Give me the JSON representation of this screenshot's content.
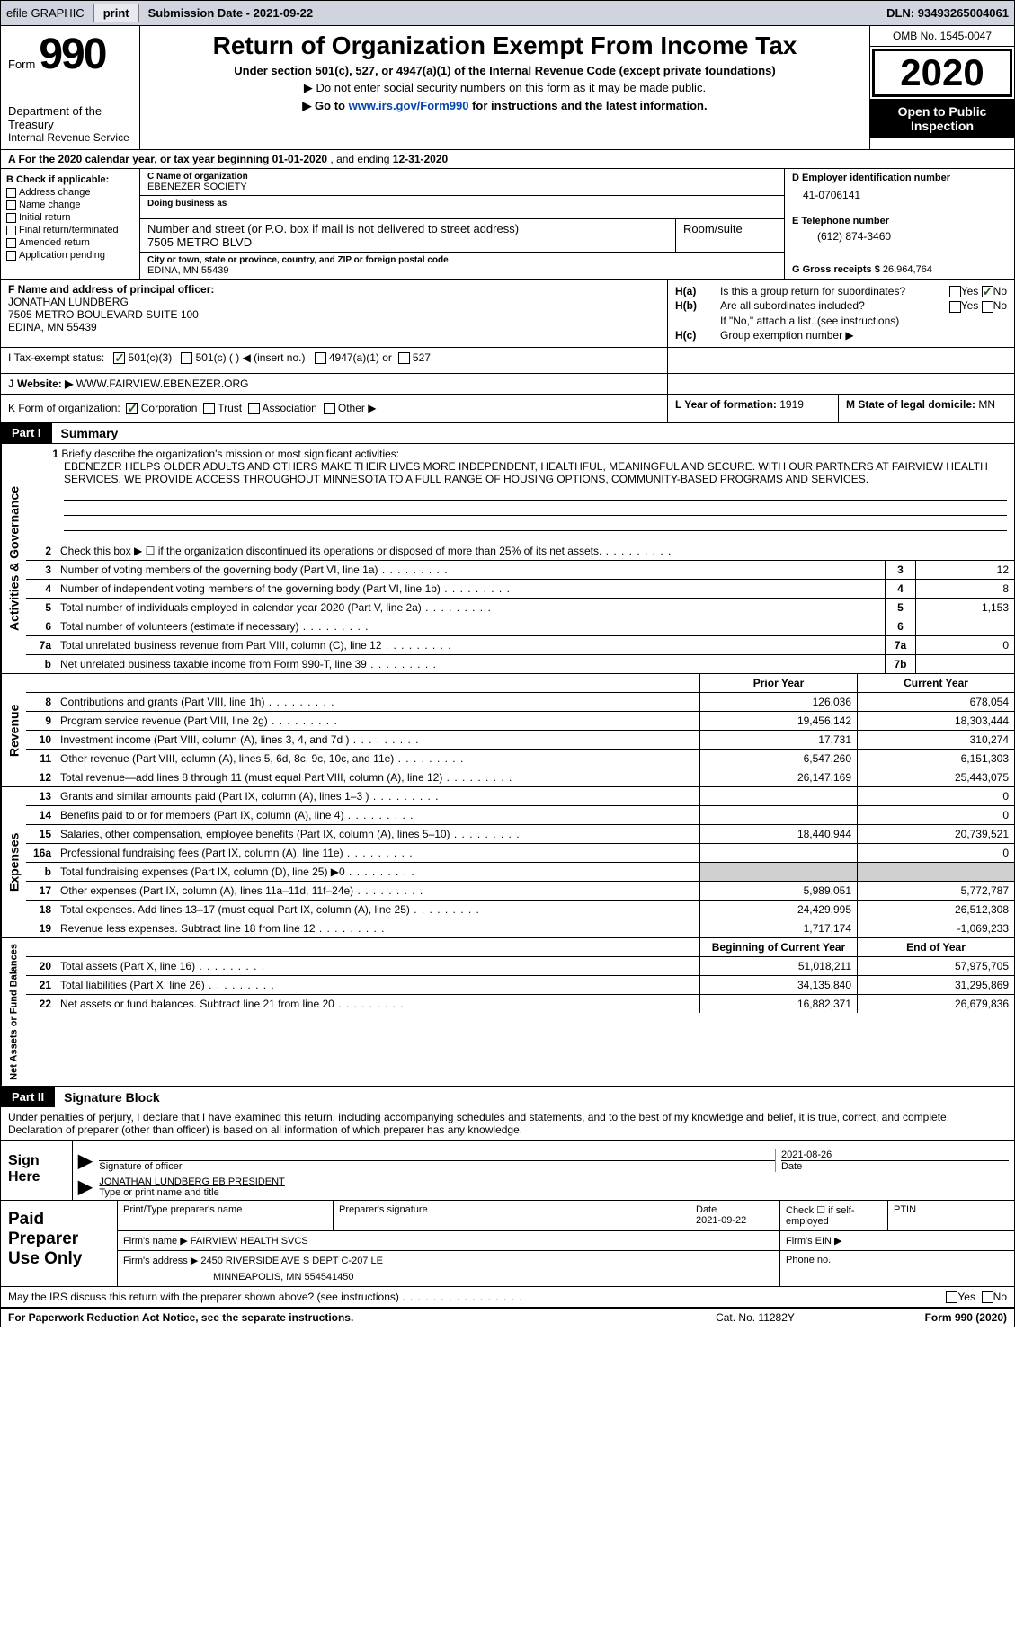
{
  "topbar": {
    "efile": "efile GRAPHIC",
    "print": "print",
    "subdate_label": "Submission Date - ",
    "subdate": "2021-09-22",
    "dln_label": "DLN: ",
    "dln": "93493265004061"
  },
  "header": {
    "form_word": "Form",
    "form_num": "990",
    "dept1": "Department of the Treasury",
    "dept2": "Internal Revenue Service",
    "title": "Return of Organization Exempt From Income Tax",
    "sub": "Under section 501(c), 527, or 4947(a)(1) of the Internal Revenue Code (except private foundations)",
    "note1": "▶ Do not enter social security numbers on this form as it may be made public.",
    "note2_pre": "▶ Go to ",
    "note2_link": "www.irs.gov/Form990",
    "note2_post": " for instructions and the latest information.",
    "omb": "OMB No. 1545-0047",
    "year": "2020",
    "inspect": "Open to Public Inspection"
  },
  "rowA": {
    "text_pre": "A For the 2020 calendar year, or tax year beginning ",
    "begin": "01-01-2020",
    "mid": " , and ending ",
    "end": "12-31-2020"
  },
  "colB": {
    "label": "B Check if applicable:",
    "c1": "Address change",
    "c2": "Name change",
    "c3": "Initial return",
    "c4": "Final return/terminated",
    "c5": "Amended return",
    "c6": "Application pending"
  },
  "colC": {
    "name_lbl": "C Name of organization",
    "name": "EBENEZER SOCIETY",
    "dba_lbl": "Doing business as",
    "dba": "",
    "street_lbl": "Number and street (or P.O. box if mail is not delivered to street address)",
    "street": "7505 METRO BLVD",
    "room_lbl": "Room/suite",
    "city_lbl": "City or town, state or province, country, and ZIP or foreign postal code",
    "city": "EDINA, MN  55439"
  },
  "colD": {
    "ein_lbl": "D Employer identification number",
    "ein": "41-0706141",
    "tel_lbl": "E Telephone number",
    "tel": "(612) 874-3460",
    "gr_lbl": "G Gross receipts $ ",
    "gr": "26,964,764"
  },
  "rowF": {
    "lbl": "F Name and address of principal officer:",
    "name": "JONATHAN LUNDBERG",
    "addr1": "7505 METRO BOULEVARD SUITE 100",
    "addr2": "EDINA, MN  55439"
  },
  "rowH": {
    "a_lbl": "H(a)",
    "a_txt": "Is this a group return for subordinates?",
    "b_lbl": "H(b)",
    "b_txt": "Are all subordinates included?",
    "b_note": "If \"No,\" attach a list. (see instructions)",
    "c_lbl": "H(c)",
    "c_txt": "Group exemption number ▶",
    "yes": "Yes",
    "no": "No"
  },
  "rowI": {
    "lbl": "I   Tax-exempt status:",
    "o1": "501(c)(3)",
    "o2": "501(c) (   ) ◀ (insert no.)",
    "o3": "4947(a)(1) or",
    "o4": "527"
  },
  "rowJ": {
    "lbl": "J   Website: ▶",
    "val": "WWW.FAIRVIEW.EBENEZER.ORG"
  },
  "rowK": {
    "lbl": "K Form of organization:",
    "o1": "Corporation",
    "o2": "Trust",
    "o3": "Association",
    "o4": "Other ▶",
    "l_lbl": "L Year of formation: ",
    "l_val": "1919",
    "m_lbl": "M State of legal domicile: ",
    "m_val": "MN"
  },
  "part1": {
    "tag": "Part I",
    "title": "Summary"
  },
  "mission": {
    "num": "1",
    "lbl": "Briefly describe the organization's mission or most significant activities:",
    "text": "EBENEZER HELPS OLDER ADULTS AND OTHERS MAKE THEIR LIVES MORE INDEPENDENT, HEALTHFUL, MEANINGFUL AND SECURE. WITH OUR PARTNERS AT FAIRVIEW HEALTH SERVICES, WE PROVIDE ACCESS THROUGHOUT MINNESOTA TO A FULL RANGE OF HOUSING OPTIONS, COMMUNITY-BASED PROGRAMS AND SERVICES."
  },
  "gov_lines": [
    {
      "n": "2",
      "t": "Check this box ▶ ☐  if the organization discontinued its operations or disposed of more than 25% of its net assets.",
      "bn": "",
      "bv": ""
    },
    {
      "n": "3",
      "t": "Number of voting members of the governing body (Part VI, line 1a)",
      "bn": "3",
      "bv": "12"
    },
    {
      "n": "4",
      "t": "Number of independent voting members of the governing body (Part VI, line 1b)",
      "bn": "4",
      "bv": "8"
    },
    {
      "n": "5",
      "t": "Total number of individuals employed in calendar year 2020 (Part V, line 2a)",
      "bn": "5",
      "bv": "1,153"
    },
    {
      "n": "6",
      "t": "Total number of volunteers (estimate if necessary)",
      "bn": "6",
      "bv": ""
    },
    {
      "n": "7a",
      "t": "Total unrelated business revenue from Part VIII, column (C), line 12",
      "bn": "7a",
      "bv": "0"
    },
    {
      "n": "b",
      "t": "Net unrelated business taxable income from Form 990-T, line 39",
      "bn": "7b",
      "bv": ""
    }
  ],
  "rev_hdr": {
    "py": "Prior Year",
    "cy": "Current Year"
  },
  "rev_lines": [
    {
      "n": "8",
      "t": "Contributions and grants (Part VIII, line 1h)",
      "py": "126,036",
      "cy": "678,054"
    },
    {
      "n": "9",
      "t": "Program service revenue (Part VIII, line 2g)",
      "py": "19,456,142",
      "cy": "18,303,444"
    },
    {
      "n": "10",
      "t": "Investment income (Part VIII, column (A), lines 3, 4, and 7d )",
      "py": "17,731",
      "cy": "310,274"
    },
    {
      "n": "11",
      "t": "Other revenue (Part VIII, column (A), lines 5, 6d, 8c, 9c, 10c, and 11e)",
      "py": "6,547,260",
      "cy": "6,151,303"
    },
    {
      "n": "12",
      "t": "Total revenue—add lines 8 through 11 (must equal Part VIII, column (A), line 12)",
      "py": "26,147,169",
      "cy": "25,443,075"
    }
  ],
  "exp_lines": [
    {
      "n": "13",
      "t": "Grants and similar amounts paid (Part IX, column (A), lines 1–3 )",
      "py": "",
      "cy": "0"
    },
    {
      "n": "14",
      "t": "Benefits paid to or for members (Part IX, column (A), line 4)",
      "py": "",
      "cy": "0"
    },
    {
      "n": "15",
      "t": "Salaries, other compensation, employee benefits (Part IX, column (A), lines 5–10)",
      "py": "18,440,944",
      "cy": "20,739,521"
    },
    {
      "n": "16a",
      "t": "Professional fundraising fees (Part IX, column (A), line 11e)",
      "py": "",
      "cy": "0"
    },
    {
      "n": "b",
      "t": "Total fundraising expenses (Part IX, column (D), line 25) ▶0",
      "py": "shade",
      "cy": "shade"
    },
    {
      "n": "17",
      "t": "Other expenses (Part IX, column (A), lines 11a–11d, 11f–24e)",
      "py": "5,989,051",
      "cy": "5,772,787"
    },
    {
      "n": "18",
      "t": "Total expenses. Add lines 13–17 (must equal Part IX, column (A), line 25)",
      "py": "24,429,995",
      "cy": "26,512,308"
    },
    {
      "n": "19",
      "t": "Revenue less expenses. Subtract line 18 from line 12",
      "py": "1,717,174",
      "cy": "-1,069,233"
    }
  ],
  "na_hdr": {
    "py": "Beginning of Current Year",
    "cy": "End of Year"
  },
  "na_lines": [
    {
      "n": "20",
      "t": "Total assets (Part X, line 16)",
      "py": "51,018,211",
      "cy": "57,975,705"
    },
    {
      "n": "21",
      "t": "Total liabilities (Part X, line 26)",
      "py": "34,135,840",
      "cy": "31,295,869"
    },
    {
      "n": "22",
      "t": "Net assets or fund balances. Subtract line 21 from line 20",
      "py": "16,882,371",
      "cy": "26,679,836"
    }
  ],
  "vlabels": {
    "gov": "Activities & Governance",
    "rev": "Revenue",
    "exp": "Expenses",
    "na": "Net Assets or Fund Balances"
  },
  "part2": {
    "tag": "Part II",
    "title": "Signature Block",
    "intro": "Under penalties of perjury, I declare that I have examined this return, including accompanying schedules and statements, and to the best of my knowledge and belief, it is true, correct, and complete. Declaration of preparer (other than officer) is based on all information of which preparer has any knowledge."
  },
  "sign": {
    "here": "Sign Here",
    "sig_lbl": "Signature of officer",
    "date_lbl": "Date",
    "date_val": "2021-08-26",
    "name": "JONATHAN LUNDBERG  EB PRESIDENT",
    "name_lbl": "Type or print name and title"
  },
  "paid": {
    "title": "Paid Preparer Use Only",
    "r1c1": "Print/Type preparer's name",
    "r1c2": "Preparer's signature",
    "r1c3_lbl": "Date",
    "r1c3_val": "2021-09-22",
    "r1c4": "Check ☐ if self-employed",
    "r1c5": "PTIN",
    "r2c1": "Firm's name    ▶",
    "r2c1v": "FAIRVIEW HEALTH SVCS",
    "r2c2": "Firm's EIN ▶",
    "r3c1": "Firm's address ▶",
    "r3c1v": "2450 RIVERSIDE AVE S DEPT C-207 LE",
    "r3c1v2": "MINNEAPOLIS, MN  554541450",
    "r3c2": "Phone no."
  },
  "foot": {
    "q": "May the IRS discuss this return with the preparer shown above? (see instructions)",
    "yes": "Yes",
    "no": "No"
  },
  "bottom": {
    "l": "For Paperwork Reduction Act Notice, see the separate instructions.",
    "m": "Cat. No. 11282Y",
    "r": "Form 990 (2020)"
  }
}
